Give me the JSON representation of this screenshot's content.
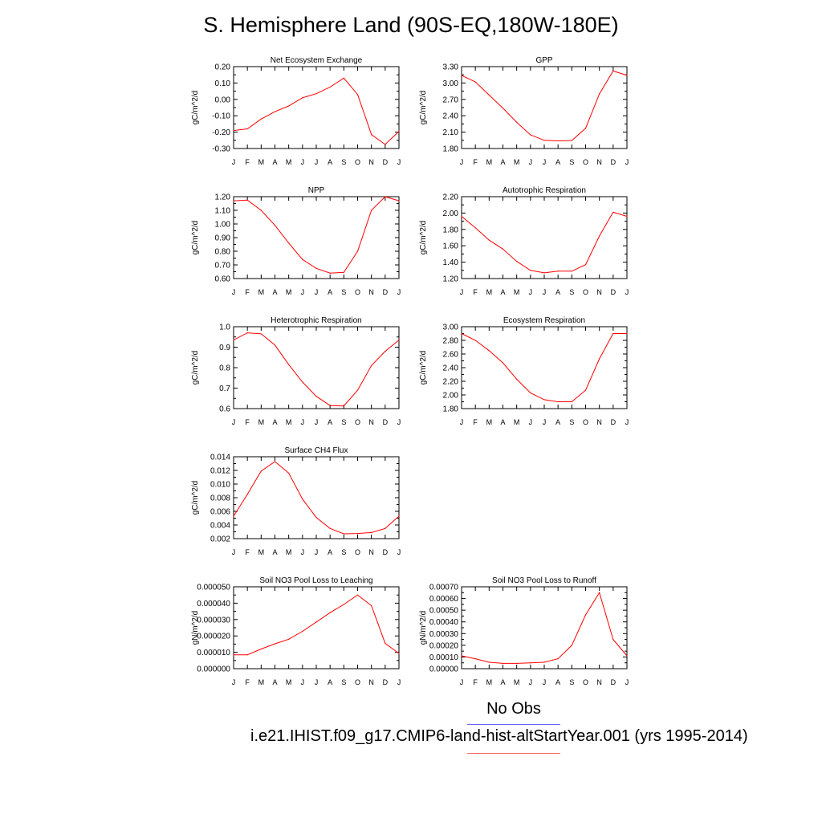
{
  "page": {
    "title": "S. Hemisphere Land (90S-EQ,180W-180E)"
  },
  "legend": {
    "obs_label": "No Obs",
    "case_label": "i.e21.IHIST.f09_g17.CMIP6-land-hist-altStartYear.001 (yrs 1995-2014)",
    "obs_color": "#0000ff",
    "case_color": "#ff0000"
  },
  "chart_data": [
    {
      "type": "line",
      "title": "Net Ecosystem Exchange",
      "ylabel": "gC/m^2/d",
      "categories": [
        "J",
        "F",
        "M",
        "A",
        "M",
        "J",
        "J",
        "A",
        "S",
        "O",
        "N",
        "D",
        "J"
      ],
      "yticks": [
        "-0.30",
        "-0.20",
        "-0.10",
        "0.00",
        "0.10",
        "0.20"
      ],
      "ylim": [
        -0.3,
        0.2
      ],
      "values": [
        -0.19,
        -0.18,
        -0.12,
        -0.075,
        -0.04,
        0.01,
        0.035,
        0.075,
        0.13,
        0.03,
        -0.215,
        -0.275,
        -0.195
      ],
      "color": "#ff0000"
    },
    {
      "type": "line",
      "title": "GPP",
      "ylabel": "gC/m^2/d",
      "categories": [
        "J",
        "F",
        "M",
        "A",
        "M",
        "J",
        "J",
        "A",
        "S",
        "O",
        "N",
        "D",
        "J"
      ],
      "yticks": [
        "1.80",
        "2.10",
        "2.40",
        "2.70",
        "3.00",
        "3.30"
      ],
      "ylim": [
        1.8,
        3.3
      ],
      "values": [
        3.14,
        3.02,
        2.78,
        2.54,
        2.28,
        2.05,
        1.95,
        1.94,
        1.945,
        2.17,
        2.8,
        3.22,
        3.14
      ],
      "color": "#ff0000"
    },
    {
      "type": "line",
      "title": "NPP",
      "ylabel": "gC/m^2/d",
      "categories": [
        "J",
        "F",
        "M",
        "A",
        "M",
        "J",
        "J",
        "A",
        "S",
        "O",
        "N",
        "D",
        "J"
      ],
      "yticks": [
        "0.60",
        "0.70",
        "0.80",
        "0.90",
        "1.00",
        "1.10",
        "1.20"
      ],
      "ylim": [
        0.6,
        1.2
      ],
      "values": [
        1.17,
        1.175,
        1.1,
        0.99,
        0.86,
        0.74,
        0.675,
        0.64,
        0.645,
        0.8,
        1.1,
        1.2,
        1.17
      ],
      "color": "#ff0000"
    },
    {
      "type": "line",
      "title": "Autotrophic Respiration",
      "ylabel": "gC/m^2/d",
      "categories": [
        "J",
        "F",
        "M",
        "A",
        "M",
        "J",
        "J",
        "A",
        "S",
        "O",
        "N",
        "D",
        "J"
      ],
      "yticks": [
        "1.20",
        "1.40",
        "1.60",
        "1.80",
        "2.00",
        "2.20"
      ],
      "ylim": [
        1.2,
        2.2
      ],
      "values": [
        1.96,
        1.82,
        1.67,
        1.56,
        1.41,
        1.3,
        1.27,
        1.29,
        1.29,
        1.37,
        1.72,
        2.01,
        1.96
      ],
      "color": "#ff0000"
    },
    {
      "type": "line",
      "title": "Heterotrophic Respiration",
      "ylabel": "gC/m^2/d",
      "categories": [
        "J",
        "F",
        "M",
        "A",
        "M",
        "J",
        "J",
        "A",
        "S",
        "O",
        "N",
        "D",
        "J"
      ],
      "yticks": [
        "0.6",
        "0.7",
        "0.8",
        "0.9",
        "1.0"
      ],
      "ylim": [
        0.6,
        1.0
      ],
      "values": [
        0.935,
        0.97,
        0.965,
        0.91,
        0.815,
        0.73,
        0.66,
        0.615,
        0.613,
        0.69,
        0.81,
        0.88,
        0.935
      ],
      "color": "#ff0000"
    },
    {
      "type": "line",
      "title": "Ecosystem Respiration",
      "ylabel": "gC/m^2/d",
      "categories": [
        "J",
        "F",
        "M",
        "A",
        "M",
        "J",
        "J",
        "A",
        "S",
        "O",
        "N",
        "D",
        "J"
      ],
      "yticks": [
        "1.80",
        "2.00",
        "2.20",
        "2.40",
        "2.60",
        "2.80",
        "3.00"
      ],
      "ylim": [
        1.8,
        3.0
      ],
      "values": [
        2.9,
        2.8,
        2.65,
        2.47,
        2.23,
        2.03,
        1.93,
        1.9,
        1.9,
        2.07,
        2.53,
        2.9,
        2.9
      ],
      "color": "#ff0000"
    },
    {
      "type": "line",
      "title": "Surface CH4 Flux",
      "ylabel": "gC/m^2/d",
      "categories": [
        "J",
        "F",
        "M",
        "A",
        "M",
        "J",
        "J",
        "A",
        "S",
        "O",
        "N",
        "D",
        "J"
      ],
      "yticks": [
        "0.002",
        "0.004",
        "0.006",
        "0.008",
        "0.010",
        "0.012",
        "0.014"
      ],
      "ylim": [
        0.002,
        0.014
      ],
      "values": [
        0.0053,
        0.0085,
        0.0119,
        0.0133,
        0.0116,
        0.0078,
        0.0051,
        0.0035,
        0.0027,
        0.00275,
        0.0029,
        0.0035,
        0.0053
      ],
      "color": "#ff0000"
    },
    {
      "type": "line",
      "title": "Soil NO3 Pool Loss to Leaching",
      "ylabel": "gN/m^2/d",
      "categories": [
        "J",
        "F",
        "M",
        "A",
        "M",
        "J",
        "J",
        "A",
        "S",
        "O",
        "N",
        "D",
        "J"
      ],
      "yticks": [
        "0.000000",
        "0.000010",
        "0.000020",
        "0.000030",
        "0.000040",
        "0.000050"
      ],
      "ylim": [
        0.0,
        5e-05
      ],
      "values": [
        8.5e-06,
        8.5e-06,
        1.2e-05,
        1.52e-05,
        1.8e-05,
        2.28e-05,
        2.85e-05,
        3.42e-05,
        3.92e-05,
        4.5e-05,
        3.85e-05,
        1.55e-05,
        9.3e-06
      ],
      "color": "#ff0000"
    },
    {
      "type": "line",
      "title": "Soil NO3 Pool Loss to Runoff",
      "ylabel": "gN/m^2/d",
      "categories": [
        "J",
        "F",
        "M",
        "A",
        "M",
        "J",
        "J",
        "A",
        "S",
        "O",
        "N",
        "D",
        "J"
      ],
      "yticks": [
        "0.00000",
        "0.00010",
        "0.00020",
        "0.00030",
        "0.00040",
        "0.00050",
        "0.00060",
        "0.00070"
      ],
      "ylim": [
        0.0,
        0.0007
      ],
      "values": [
        0.00011,
        8.5e-05,
        5.5e-05,
        4.5e-05,
        4.5e-05,
        5e-05,
        5.5e-05,
        8.5e-05,
        0.0002,
        0.00046,
        0.00065,
        0.00025,
        0.00011
      ],
      "color": "#ff0000"
    }
  ]
}
